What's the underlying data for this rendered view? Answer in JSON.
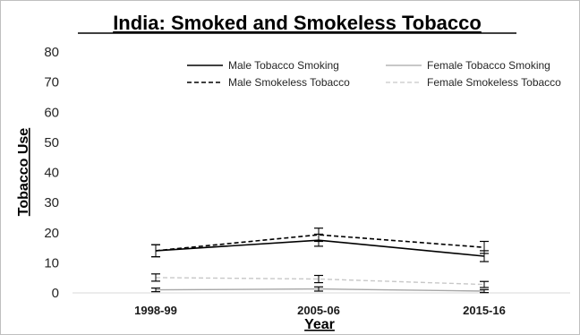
{
  "chart_data": {
    "type": "line",
    "title": "India: Smoked and Smokeless Tobacco",
    "xlabel": "Year",
    "ylabel": "Tobacco Use",
    "categories": [
      "1998-99",
      "2005-06",
      "2015-16"
    ],
    "ylim": [
      0,
      80
    ],
    "yticks": [
      0,
      10,
      20,
      30,
      40,
      50,
      60,
      70,
      80
    ],
    "grid": false,
    "legend_placement": "top-right",
    "series": [
      {
        "name": "Male Tobacco Smoking",
        "values": [
          14,
          17.5,
          12.2
        ],
        "error": [
          2,
          2,
          1.8
        ],
        "color": "#000000",
        "dash": "solid"
      },
      {
        "name": "Male Smokeless Tobacco",
        "values": [
          14,
          19.3,
          15.1
        ],
        "error": [
          2,
          2.2,
          2
        ],
        "color": "#000000",
        "dash": "dashed"
      },
      {
        "name": "Female Tobacco Smoking",
        "values": [
          1,
          1.3,
          0.6
        ],
        "error": [
          0.6,
          0.7,
          0.5
        ],
        "color": "#a6a6a6",
        "dash": "solid"
      },
      {
        "name": "Female Smokeless Tobacco",
        "values": [
          5.1,
          4.6,
          2.8
        ],
        "error": [
          1.2,
          1.2,
          1.0
        ],
        "color": "#c8c8c8",
        "dash": "dashed"
      }
    ]
  }
}
